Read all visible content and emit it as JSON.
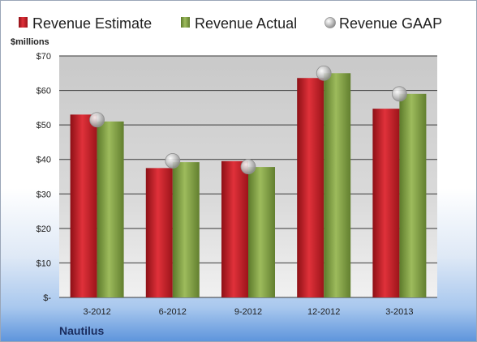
{
  "chart_data": {
    "type": "bar",
    "categories": [
      "3-2012",
      "6-2012",
      "9-2012",
      "12-2012",
      "3-2013"
    ],
    "series": [
      {
        "name": "Revenue Estimate",
        "kind": "bar",
        "color": "#d2202a",
        "values": [
          53.0,
          37.5,
          39.5,
          63.6,
          54.7
        ]
      },
      {
        "name": "Revenue Actual",
        "kind": "bar",
        "color": "#8aaa4a",
        "values": [
          51.0,
          39.2,
          37.8,
          65.0,
          59.0
        ]
      },
      {
        "name": "Revenue GAAP",
        "kind": "marker",
        "color": "#b9b9b9",
        "values": [
          51.5,
          39.6,
          37.9,
          65.0,
          59.0
        ]
      }
    ],
    "ylim": [
      0,
      70
    ],
    "yticks": [
      0,
      10,
      20,
      30,
      40,
      50,
      60,
      70
    ],
    "ytick_labels": [
      "$-",
      "$10",
      "$20",
      "$30",
      "$40",
      "$50",
      "$60",
      "$70"
    ],
    "ylabel": "$millions",
    "grid": true,
    "legend": "top",
    "company": "Nautilus"
  }
}
